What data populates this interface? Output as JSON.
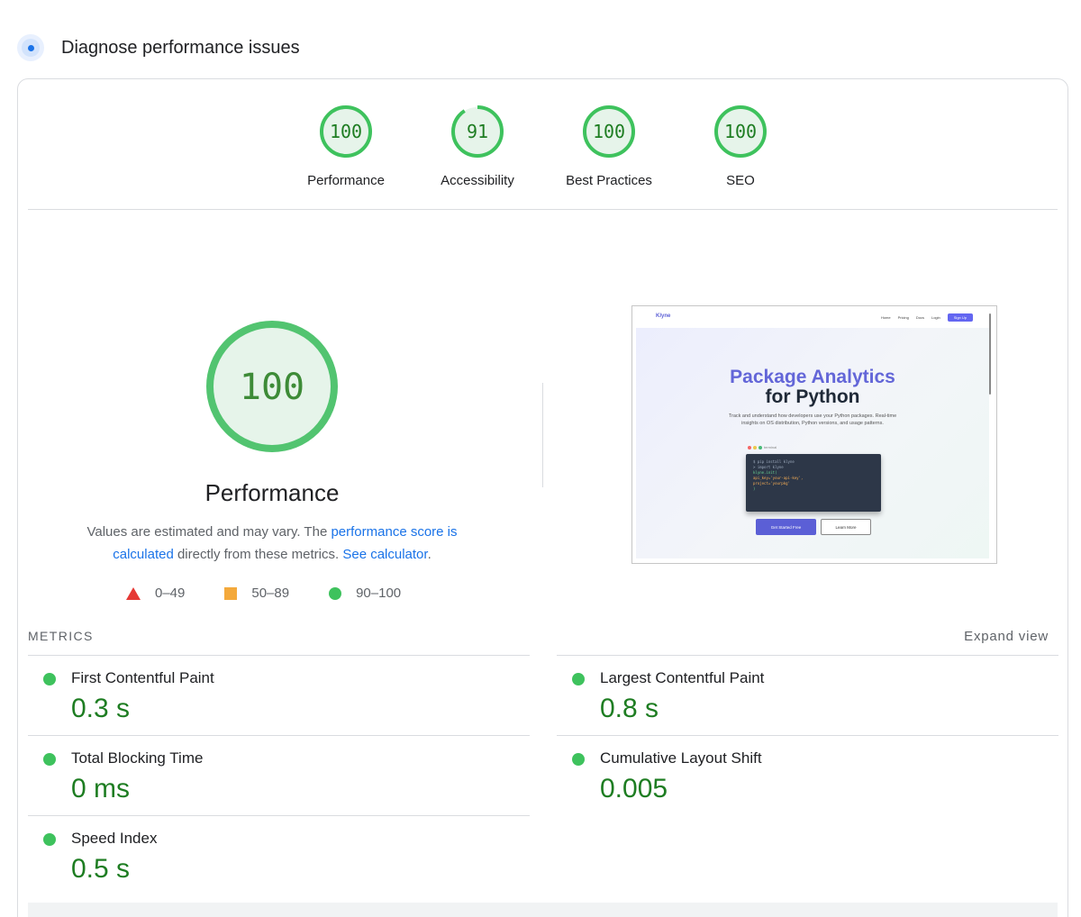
{
  "header": {
    "title": "Diagnose performance issues",
    "icon": "gauge-icon",
    "accent": "#1a73e8"
  },
  "categories": [
    {
      "id": "performance",
      "label": "Performance",
      "score": 100,
      "fraction": 1.0
    },
    {
      "id": "accessibility",
      "label": "Accessibility",
      "score": 91,
      "fraction": 0.91
    },
    {
      "id": "best-practices",
      "label": "Best Practices",
      "score": 100,
      "fraction": 1.0
    },
    {
      "id": "seo",
      "label": "SEO",
      "score": 100,
      "fraction": 1.0
    }
  ],
  "performance": {
    "score": "100",
    "title": "Performance",
    "desc_prefix": "Values are estimated and may vary. The ",
    "desc_link": "performance score is calculated",
    "desc_middle": " directly from these metrics. ",
    "desc_link2": "See calculator",
    "desc_suffix": "."
  },
  "legend": [
    {
      "shape": "triangle",
      "label": "0–49",
      "color": "#e53935"
    },
    {
      "shape": "square",
      "label": "50–89",
      "color": "#f4a93b"
    },
    {
      "shape": "circle",
      "label": "90–100",
      "color": "#3ec25d"
    }
  ],
  "thumbnail": {
    "logo": "Klyne",
    "nav": [
      "Home",
      "Pricing",
      "Docs",
      "Login"
    ],
    "signup": "Sign Up",
    "headline_1": "Package Analytics",
    "headline_2": "for Python",
    "subtitle": "Track and understand how developers use your Python packages. Real-time insights on OS distribution, Python versions, and usage patterns.",
    "terminal_label": "terminal",
    "terminal_lines": [
      "$ pip install klyne",
      "> import klyne",
      "klyne.init(",
      "  api_key='your-api-key',",
      "  project='yourpkg'",
      ")"
    ],
    "button_primary": "Get Started Free",
    "button_secondary": "Learn More"
  },
  "metrics": {
    "heading": "METRICS",
    "expand": "Expand view",
    "items": [
      {
        "name": "First Contentful Paint",
        "value": "0.3 s"
      },
      {
        "name": "Largest Contentful Paint",
        "value": "0.8 s"
      },
      {
        "name": "Total Blocking Time",
        "value": "0 ms"
      },
      {
        "name": "Cumulative Layout Shift",
        "value": "0.005"
      },
      {
        "name": "Speed Index",
        "value": "0.5 s"
      }
    ]
  },
  "colors": {
    "pass": "#0c7d2a",
    "pass_ring": "#3ec25d",
    "pass_fill": "#e6f4ea"
  }
}
